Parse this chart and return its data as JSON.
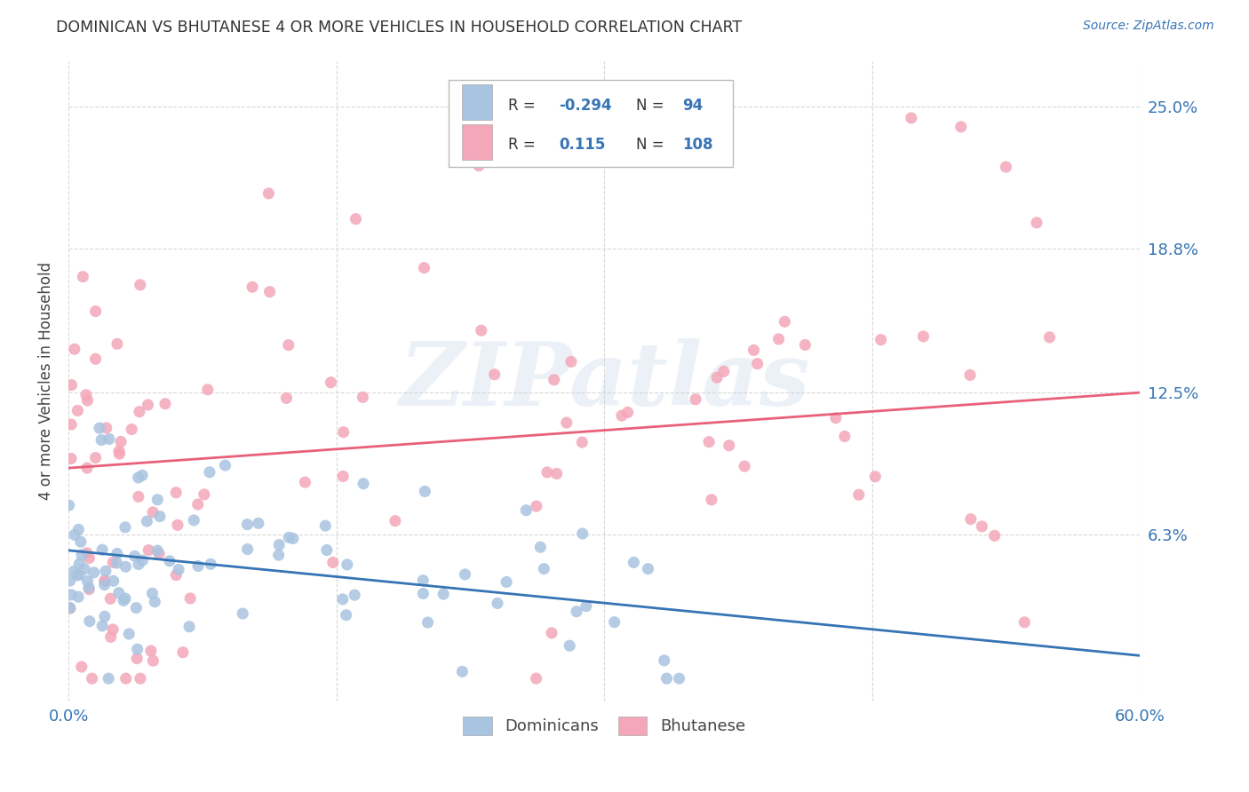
{
  "title": "DOMINICAN VS BHUTANESE 4 OR MORE VEHICLES IN HOUSEHOLD CORRELATION CHART",
  "source": "Source: ZipAtlas.com",
  "ylabel": "4 or more Vehicles in Household",
  "ytick_labels": [
    "25.0%",
    "18.8%",
    "12.5%",
    "6.3%"
  ],
  "ytick_values": [
    0.25,
    0.188,
    0.125,
    0.063
  ],
  "xlim": [
    0.0,
    0.6
  ],
  "ylim": [
    -0.01,
    0.27
  ],
  "dominican_R": -0.294,
  "dominican_N": 94,
  "bhutanese_R": 0.115,
  "bhutanese_N": 108,
  "dominican_color": "#a8c4e0",
  "bhutanese_color": "#f4a7b9",
  "dominican_line_color": "#3674b5",
  "bhutanese_line_color": "#e8607a",
  "legend_label_1": "Dominicans",
  "legend_label_2": "Bhutanese",
  "background_color": "#ffffff",
  "grid_color": "#d8d8d8",
  "title_color": "#333333",
  "axis_label_color": "#444444",
  "tick_label_color": "#3674b5",
  "watermark_text": "ZIPatlas",
  "watermark_color": "#c8d8ea",
  "watermark_alpha": 0.35,
  "dom_line_start_y": 0.056,
  "dom_line_end_y": 0.01,
  "bhu_line_start_y": 0.092,
  "bhu_line_end_y": 0.125
}
